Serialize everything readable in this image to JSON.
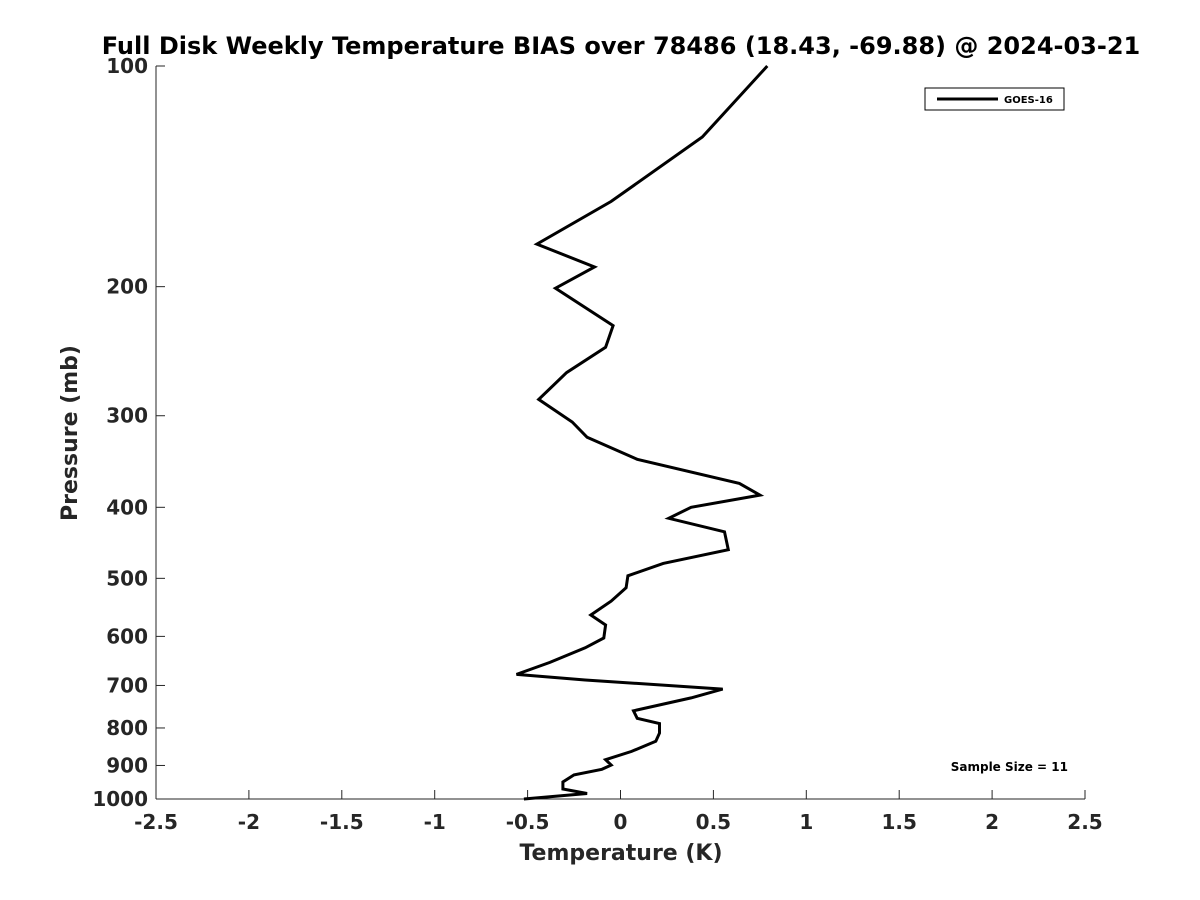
{
  "chart_data": {
    "type": "line",
    "title": "Full Disk Weekly Temperature BIAS over 78486 (18.43, -69.88) @ 2024-03-21",
    "xlabel": "Temperature (K)",
    "ylabel": "Pressure (mb)",
    "xlim": [
      -2.5,
      2.5
    ],
    "ylim": [
      1000,
      100
    ],
    "y_scale": "log",
    "y_reversed": true,
    "x_ticks": [
      -2.5,
      -2,
      -1.5,
      -1,
      -0.5,
      0,
      0.5,
      1,
      1.5,
      2,
      2.5
    ],
    "x_tick_labels": [
      "-2.5",
      "-2",
      "-1.5",
      "-1",
      "-0.5",
      "0",
      "0.5",
      "1",
      "1.5",
      "2",
      "2.5"
    ],
    "y_ticks": [
      100,
      200,
      300,
      400,
      500,
      600,
      700,
      800,
      900,
      1000
    ],
    "y_tick_labels": [
      "100",
      "200",
      "300",
      "400",
      "500",
      "600",
      "700",
      "800",
      "900",
      "1000"
    ],
    "grid": false,
    "legend_position": "top-right",
    "series": [
      {
        "name": "GOES-16",
        "color": "#000000",
        "points": [
          {
            "x": 0.79,
            "y": 100
          },
          {
            "x": 0.44,
            "y": 125
          },
          {
            "x": -0.05,
            "y": 153
          },
          {
            "x": -0.45,
            "y": 175
          },
          {
            "x": -0.14,
            "y": 188
          },
          {
            "x": -0.35,
            "y": 201
          },
          {
            "x": -0.04,
            "y": 226
          },
          {
            "x": -0.08,
            "y": 242
          },
          {
            "x": -0.29,
            "y": 262
          },
          {
            "x": -0.44,
            "y": 285
          },
          {
            "x": -0.26,
            "y": 306
          },
          {
            "x": -0.18,
            "y": 321
          },
          {
            "x": 0.09,
            "y": 344
          },
          {
            "x": 0.64,
            "y": 371
          },
          {
            "x": 0.75,
            "y": 385
          },
          {
            "x": 0.38,
            "y": 400
          },
          {
            "x": 0.26,
            "y": 414
          },
          {
            "x": 0.56,
            "y": 432
          },
          {
            "x": 0.58,
            "y": 457
          },
          {
            "x": 0.23,
            "y": 477
          },
          {
            "x": 0.04,
            "y": 496
          },
          {
            "x": 0.03,
            "y": 515
          },
          {
            "x": -0.05,
            "y": 537
          },
          {
            "x": -0.16,
            "y": 561
          },
          {
            "x": -0.08,
            "y": 579
          },
          {
            "x": -0.09,
            "y": 603
          },
          {
            "x": -0.19,
            "y": 622
          },
          {
            "x": -0.38,
            "y": 651
          },
          {
            "x": -0.56,
            "y": 676
          },
          {
            "x": -0.19,
            "y": 688
          },
          {
            "x": 0.55,
            "y": 708
          },
          {
            "x": 0.38,
            "y": 728
          },
          {
            "x": 0.07,
            "y": 758
          },
          {
            "x": 0.09,
            "y": 776
          },
          {
            "x": 0.21,
            "y": 789
          },
          {
            "x": 0.21,
            "y": 813
          },
          {
            "x": 0.19,
            "y": 834
          },
          {
            "x": 0.06,
            "y": 861
          },
          {
            "x": -0.08,
            "y": 884
          },
          {
            "x": -0.05,
            "y": 899
          },
          {
            "x": -0.1,
            "y": 911
          },
          {
            "x": -0.25,
            "y": 927
          },
          {
            "x": -0.31,
            "y": 948
          },
          {
            "x": -0.31,
            "y": 969
          },
          {
            "x": -0.18,
            "y": 983
          },
          {
            "x": -0.52,
            "y": 1000
          }
        ]
      }
    ],
    "annotation": "Sample Size = 11"
  }
}
